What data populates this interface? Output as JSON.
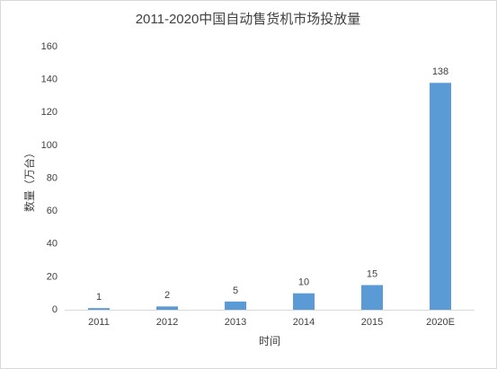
{
  "chart_data": {
    "type": "bar",
    "title": "2011-2020中国自动售货机市场投放量",
    "x_label": "时间",
    "y_label": "数量（万台）",
    "categories": [
      "2011",
      "2012",
      "2013",
      "2014",
      "2015",
      "2020E"
    ],
    "values": [
      1,
      2,
      5,
      10,
      15,
      138
    ],
    "color": "#5b9bd5",
    "ylim": [
      0,
      160
    ],
    "yticks": [
      0,
      20,
      40,
      60,
      80,
      100,
      120,
      140,
      160
    ],
    "grid": false
  }
}
